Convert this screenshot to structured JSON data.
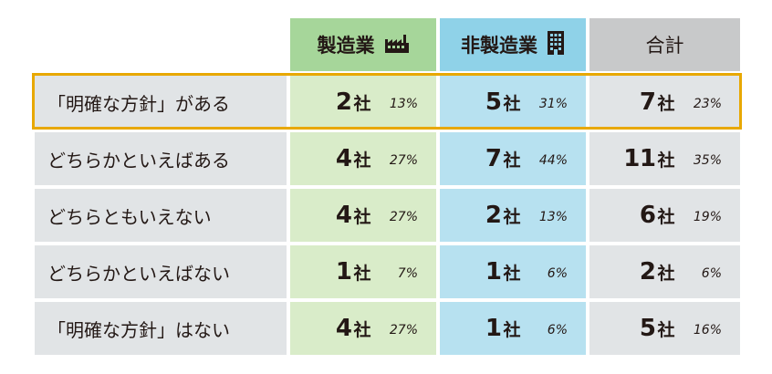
{
  "headers": {
    "manufacturing": "製造業",
    "non_manufacturing": "非製造業",
    "total": "合計",
    "manufacturing_icon": "factory-icon",
    "non_manufacturing_icon": "building-icon"
  },
  "unit": "社",
  "rows": [
    {
      "label": "「明確な方針」がある",
      "mfg": "2",
      "mfg_pct": "13%",
      "non": "5",
      "non_pct": "31%",
      "tot": "7",
      "tot_pct": "23%"
    },
    {
      "label": "どちらかといえばある",
      "mfg": "4",
      "mfg_pct": "27%",
      "non": "7",
      "non_pct": "44%",
      "tot": "11",
      "tot_pct": "35%"
    },
    {
      "label": "どちらともいえない",
      "mfg": "4",
      "mfg_pct": "27%",
      "non": "2",
      "non_pct": "13%",
      "tot": "6",
      "tot_pct": "19%"
    },
    {
      "label": "どちらかといえばない",
      "mfg": "1",
      "mfg_pct": "7%",
      "non": "1",
      "non_pct": "6%",
      "tot": "2",
      "tot_pct": "6%"
    },
    {
      "label": "「明確な方針」はない",
      "mfg": "4",
      "mfg_pct": "27%",
      "non": "1",
      "non_pct": "6%",
      "tot": "5",
      "tot_pct": "16%"
    }
  ],
  "colors": {
    "manufacturing_header": "#a6d69a",
    "manufacturing_cell": "#d9ecc9",
    "non_manufacturing_header": "#8fd2e8",
    "non_manufacturing_cell": "#b7e1f0",
    "total_header": "#c8c9ca",
    "label_cell": "#e1e4e6",
    "highlight": "#e8a800"
  }
}
